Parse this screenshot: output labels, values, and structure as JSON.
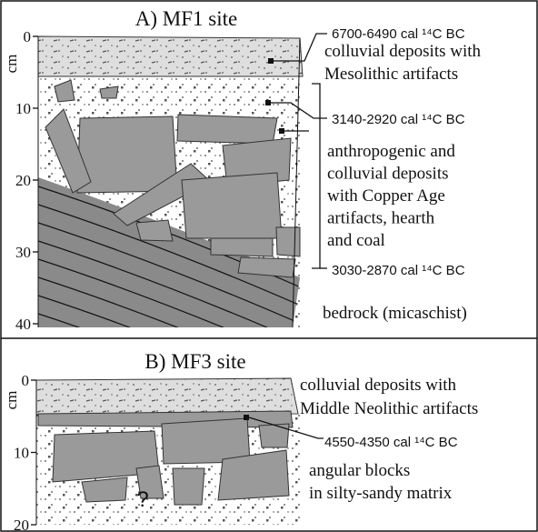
{
  "panels": [
    {
      "title": "A) MF1 site",
      "unit": "cm",
      "ticks": [
        0,
        10,
        20,
        30,
        40
      ],
      "dates": [
        "6700-6490 cal ¹⁴C BC",
        "3140-2920 cal ¹⁴C BC",
        "3030-2870 cal ¹⁴C BC"
      ],
      "units": [
        {
          "lines": [
            "colluvial deposits with",
            "Mesolithic artifacts"
          ]
        },
        {
          "lines": [
            "anthropogenic and",
            "colluvial deposits",
            "with Copper Age",
            "artifacts, hearth",
            "and coal"
          ]
        },
        {
          "lines": [
            "bedrock (micaschist)"
          ]
        }
      ]
    },
    {
      "title": "B) MF3 site",
      "unit": "cm",
      "ticks": [
        0,
        10,
        20
      ],
      "dates": [
        "4550-4350 cal ¹⁴C BC"
      ],
      "units": [
        {
          "lines": [
            "colluvial deposits with",
            "Middle Neolithic artifacts"
          ]
        },
        {
          "lines": [
            "angular blocks",
            "in silty-sandy matrix"
          ]
        }
      ],
      "unknown": "?"
    }
  ]
}
